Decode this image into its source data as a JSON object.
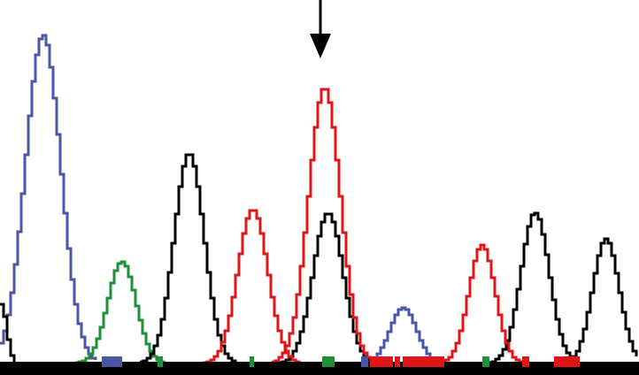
{
  "chart_data": {
    "type": "line",
    "title": "",
    "xlabel": "",
    "ylabel": "",
    "xlim": [
      0,
      722
    ],
    "ylim": [
      0,
      100
    ],
    "grid": false,
    "legend": "none",
    "baseline": {
      "color": "#000000"
    },
    "annotations": [
      {
        "kind": "arrow-down",
        "name": "variant-arrow",
        "x": 362,
        "color": "#000000"
      }
    ],
    "series": [
      {
        "color": "#4a55a6",
        "peaks": [
          {
            "x": 47,
            "height": 100,
            "sigma": 20
          },
          {
            "x": 454,
            "height": 17,
            "sigma": 15
          }
        ]
      },
      {
        "color": "#1f8f3a",
        "peaks": [
          {
            "x": 136,
            "height": 31,
            "sigma": 16
          }
        ]
      },
      {
        "color": "#000000",
        "peaks": [
          {
            "x": 0,
            "height": 18,
            "sigma": 6
          },
          {
            "x": 212,
            "height": 64,
            "sigma": 17
          },
          {
            "x": 369,
            "height": 46,
            "sigma": 17
          },
          {
            "x": 603,
            "height": 46,
            "sigma": 16
          },
          {
            "x": 683,
            "height": 38,
            "sigma": 15
          }
        ]
      },
      {
        "color": "#e01515",
        "peaks": [
          {
            "x": 284,
            "height": 47,
            "sigma": 17
          },
          {
            "x": 365,
            "height": 84,
            "sigma": 18
          },
          {
            "x": 543,
            "height": 36,
            "sigma": 15
          }
        ]
      }
    ],
    "baseline_marks": [
      {
        "color": "#4a55a6",
        "from": 115,
        "to": 138
      },
      {
        "color": "#1f8f3a",
        "from": 178,
        "to": 184
      },
      {
        "color": "#1f8f3a",
        "from": 282,
        "to": 287
      },
      {
        "color": "#1f8f3a",
        "from": 364,
        "to": 378
      },
      {
        "color": "#4a55a6",
        "from": 408,
        "to": 416
      },
      {
        "color": "#e01515",
        "from": 418,
        "to": 444
      },
      {
        "color": "#e01515",
        "from": 446,
        "to": 452
      },
      {
        "color": "#e01515",
        "from": 455,
        "to": 502
      },
      {
        "color": "#1f8f3a",
        "from": 545,
        "to": 553
      },
      {
        "color": "#e01515",
        "from": 590,
        "to": 598
      },
      {
        "color": "#e01515",
        "from": 626,
        "to": 655
      }
    ]
  }
}
